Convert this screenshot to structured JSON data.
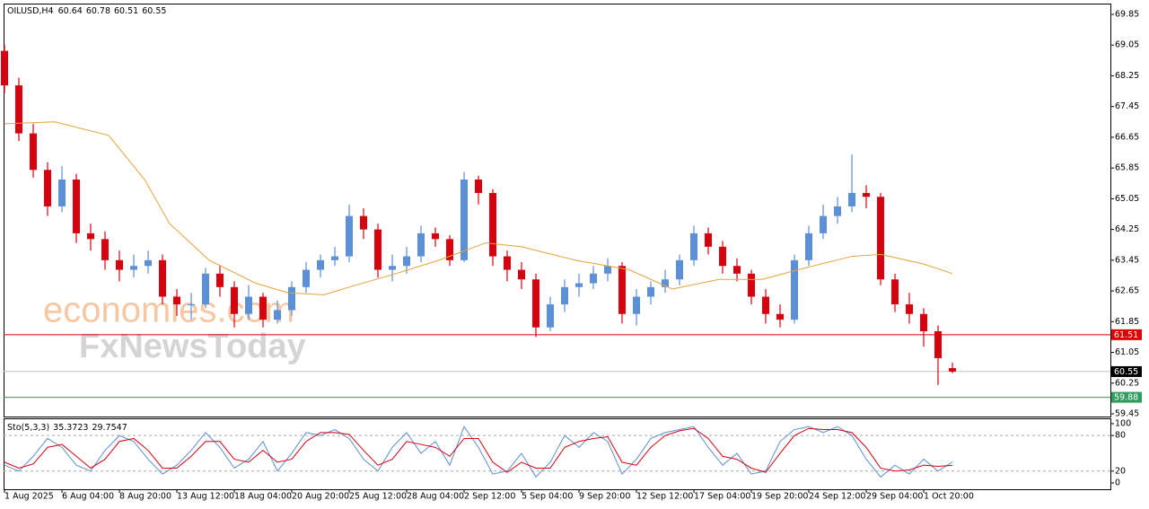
{
  "chart_data": {
    "type": "candlestick",
    "title": "OILUSD,H4",
    "up_color": "#5b8fd6",
    "down_color": "#d7000f",
    "x": [
      0,
      4,
      8,
      12,
      16,
      20,
      24,
      28,
      32,
      36,
      40,
      44,
      48,
      52,
      56,
      60,
      64,
      68,
      72,
      76,
      80,
      84,
      88,
      92,
      96,
      100,
      104,
      108,
      112,
      116,
      120,
      124,
      128,
      132,
      136,
      140,
      144,
      148,
      152,
      156,
      160,
      164,
      168,
      172,
      176,
      180,
      184,
      188,
      192,
      196,
      200,
      204,
      208,
      212,
      216,
      220,
      224,
      228,
      232,
      236,
      240,
      244,
      248,
      252,
      256,
      260,
      264
    ],
    "open": [
      68.9,
      68.0,
      66.75,
      65.8,
      64.85,
      65.55,
      64.15,
      64.0,
      63.45,
      63.2,
      63.3,
      63.45,
      62.5,
      62.3,
      62.3,
      63.1,
      62.75,
      62.05,
      62.5,
      61.9,
      62.15,
      62.75,
      63.2,
      63.45,
      63.55,
      64.6,
      64.25,
      63.2,
      63.3,
      63.55,
      64.15,
      64.0,
      63.45,
      65.55,
      65.2,
      63.55,
      63.2,
      62.95,
      61.7,
      62.3,
      62.75,
      62.85,
      63.1,
      63.3,
      62.05,
      62.5,
      62.75,
      62.95,
      63.45,
      64.15,
      63.8,
      63.3,
      63.1,
      62.5,
      62.05,
      61.9,
      63.45,
      64.15,
      64.6,
      64.85,
      65.2,
      65.1,
      62.95,
      62.3,
      62.05,
      61.6,
      60.64
    ],
    "high": [
      69.05,
      68.2,
      67.0,
      66.0,
      65.9,
      65.7,
      64.4,
      64.2,
      63.7,
      63.6,
      63.7,
      63.6,
      62.7,
      62.6,
      63.25,
      63.3,
      62.9,
      62.8,
      62.6,
      62.4,
      62.9,
      63.4,
      63.6,
      63.8,
      64.9,
      64.8,
      64.4,
      63.6,
      63.8,
      64.35,
      64.3,
      64.1,
      65.75,
      65.65,
      65.3,
      63.7,
      63.4,
      63.1,
      62.5,
      62.95,
      63.1,
      63.3,
      63.5,
      63.4,
      62.7,
      62.9,
      63.2,
      63.6,
      64.35,
      64.3,
      63.95,
      63.5,
      63.2,
      62.7,
      62.3,
      63.6,
      64.35,
      64.9,
      65.1,
      66.2,
      65.4,
      65.2,
      63.1,
      62.6,
      62.2,
      61.75,
      60.78
    ],
    "low": [
      67.8,
      66.55,
      65.6,
      64.6,
      64.7,
      63.9,
      63.7,
      63.2,
      62.9,
      63.0,
      63.1,
      62.3,
      62.0,
      61.9,
      62.2,
      62.5,
      61.7,
      61.9,
      61.7,
      61.8,
      62.0,
      62.6,
      63.0,
      63.3,
      63.4,
      64.0,
      63.0,
      62.9,
      63.1,
      63.4,
      63.8,
      63.3,
      63.4,
      64.9,
      63.3,
      62.9,
      62.7,
      61.45,
      61.6,
      62.1,
      62.5,
      62.7,
      62.9,
      61.8,
      61.75,
      62.3,
      62.6,
      62.8,
      63.3,
      63.6,
      63.1,
      62.9,
      62.3,
      61.8,
      61.7,
      61.8,
      63.3,
      64.0,
      64.4,
      64.7,
      64.8,
      62.8,
      62.1,
      61.8,
      61.2,
      60.2,
      60.51
    ],
    "close": [
      68.0,
      66.75,
      65.8,
      64.85,
      65.55,
      64.15,
      64.0,
      63.45,
      63.2,
      63.3,
      63.45,
      62.5,
      62.3,
      62.3,
      63.1,
      62.75,
      62.05,
      62.5,
      61.9,
      62.15,
      62.75,
      63.2,
      63.45,
      63.55,
      64.6,
      64.25,
      63.2,
      63.3,
      63.55,
      64.15,
      64.0,
      63.45,
      65.55,
      65.2,
      63.55,
      63.2,
      62.95,
      61.7,
      62.3,
      62.75,
      62.85,
      63.1,
      63.3,
      62.05,
      62.5,
      62.75,
      62.95,
      63.45,
      64.15,
      63.8,
      63.3,
      63.1,
      62.5,
      62.05,
      61.9,
      63.45,
      64.15,
      64.6,
      64.85,
      65.2,
      65.1,
      62.95,
      62.3,
      62.05,
      61.6,
      60.9,
      60.55
    ],
    "xlim": [
      -0.25,
      308
    ],
    "ylim": [
      59.38,
      70.13
    ],
    "yticks": [
      69.85,
      69.05,
      68.25,
      67.45,
      66.65,
      65.85,
      65.05,
      64.25,
      63.45,
      62.65,
      61.85,
      61.05,
      60.25,
      59.45
    ],
    "xticks": [
      {
        "value": 0,
        "label": "1 Aug 2025"
      },
      {
        "value": 16,
        "label": "6 Aug 04:00"
      },
      {
        "value": 32,
        "label": "8 Aug 20:00"
      },
      {
        "value": 48,
        "label": "13 Aug 12:00"
      },
      {
        "value": 64,
        "label": "18 Aug 04:00"
      },
      {
        "value": 80,
        "label": "20 Aug 20:00"
      },
      {
        "value": 96,
        "label": "25 Aug 12:00"
      },
      {
        "value": 112,
        "label": "28 Aug 04:00"
      },
      {
        "value": 128,
        "label": "2 Sep 12:00"
      },
      {
        "value": 144,
        "label": "5 Sep 04:00"
      },
      {
        "value": 160,
        "label": "9 Sep 20:00"
      },
      {
        "value": 176,
        "label": "12 Sep 12:00"
      },
      {
        "value": 192,
        "label": "17 Sep 04:00"
      },
      {
        "value": 208,
        "label": "19 Sep 20:00"
      },
      {
        "value": 224,
        "label": "24 Sep 12:00"
      },
      {
        "value": 240,
        "label": "29 Sep 04:00"
      },
      {
        "value": 256,
        "label": "1 Oct 20:00"
      }
    ],
    "moving_average": {
      "color": "#e8a23a",
      "x": [
        0,
        14,
        29,
        39,
        46,
        57,
        70,
        79,
        89,
        96,
        109,
        121,
        134,
        144,
        159,
        174,
        186,
        199,
        211,
        221,
        236,
        244,
        256,
        264
      ],
      "values": [
        67.0,
        67.05,
        66.7,
        65.55,
        64.4,
        63.45,
        62.85,
        62.6,
        62.55,
        62.75,
        63.1,
        63.45,
        63.9,
        63.8,
        63.45,
        63.2,
        62.7,
        62.95,
        62.95,
        63.2,
        63.55,
        63.6,
        63.35,
        63.1
      ]
    },
    "levels": [
      {
        "value": 61.51,
        "color": "#e00000",
        "label_color": "#e00000"
      },
      {
        "value": 60.55,
        "color": "#c0c0c0",
        "label_color": "#000000"
      },
      {
        "value": 59.88,
        "color": "#2e9e5e",
        "label_color": "#2e9e5e"
      }
    ],
    "watermark": [
      "economies.com",
      "FxNewsToday"
    ],
    "indicator": {
      "type": "line",
      "title": "Sto(5,3,3)",
      "ylim": [
        -10.6,
        109
      ],
      "yticks": [
        100,
        80,
        20,
        0
      ],
      "series": [
        {
          "color": "#5b8fd6",
          "values": [
            30,
            20,
            45,
            75,
            60,
            30,
            20,
            55,
            80,
            70,
            40,
            15,
            30,
            55,
            85,
            60,
            25,
            40,
            70,
            20,
            50,
            85,
            80,
            90,
            75,
            40,
            20,
            60,
            85,
            50,
            70,
            30,
            95,
            60,
            15,
            20,
            50,
            10,
            35,
            80,
            60,
            85,
            70,
            15,
            40,
            75,
            85,
            90,
            95,
            60,
            30,
            50,
            15,
            20,
            70,
            90,
            95,
            85,
            95,
            80,
            40,
            10,
            30,
            15,
            40,
            20,
            35.3723
          ]
        },
        {
          "color": "#d7000f",
          "values": [
            35,
            25,
            32,
            60,
            65,
            45,
            25,
            40,
            70,
            75,
            55,
            25,
            25,
            45,
            70,
            70,
            40,
            35,
            55,
            35,
            40,
            70,
            85,
            85,
            82,
            55,
            30,
            40,
            70,
            65,
            60,
            45,
            75,
            75,
            35,
            18,
            35,
            25,
            25,
            60,
            70,
            75,
            78,
            35,
            30,
            60,
            80,
            88,
            92,
            75,
            45,
            40,
            25,
            18,
            50,
            80,
            92,
            90,
            90,
            85,
            60,
            25,
            20,
            22,
            30,
            28,
            29.7547
          ]
        }
      ]
    }
  }
}
